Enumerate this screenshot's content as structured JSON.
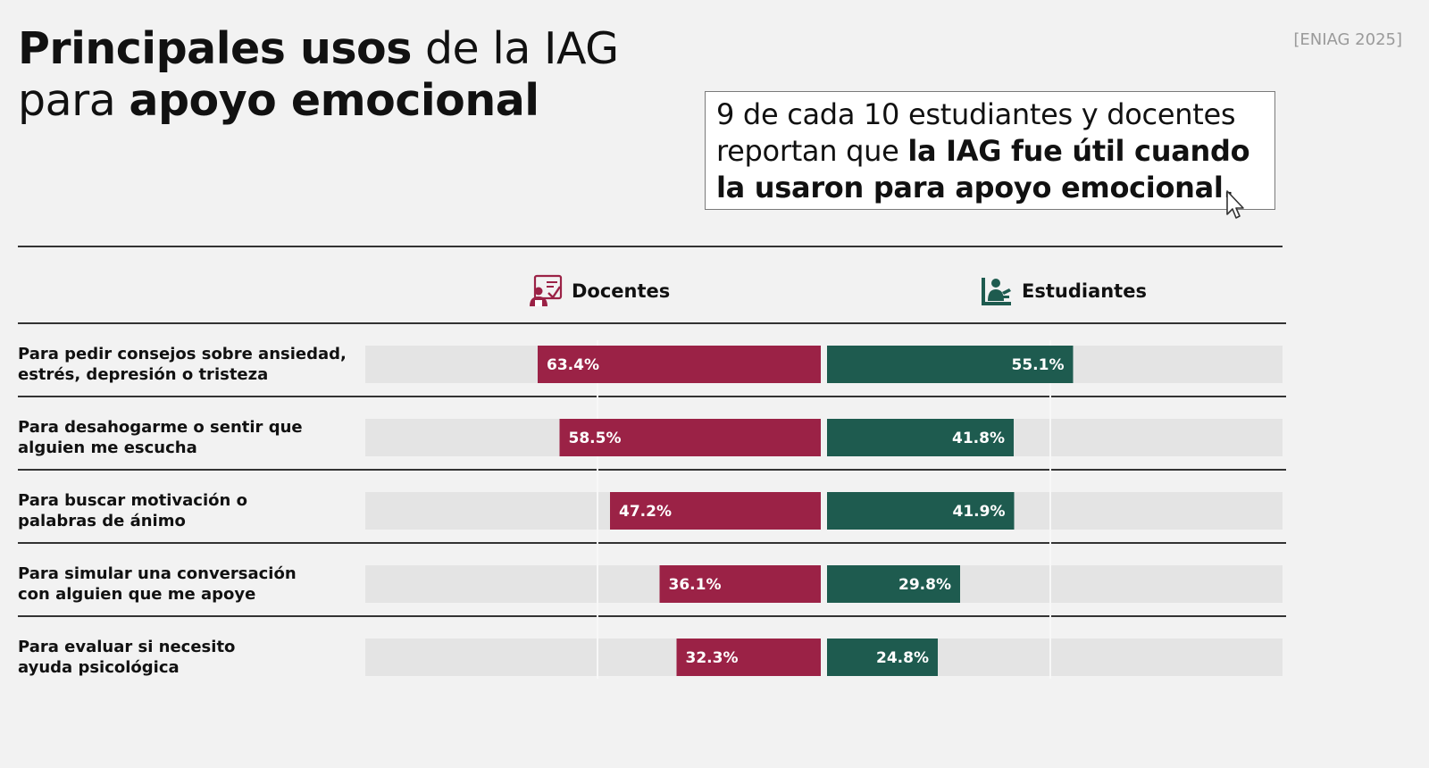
{
  "header": {
    "title_line1_bold": "Principales usos",
    "title_line1_rest": " de la IAG",
    "title_line2_rest": "para ",
    "title_line2_bold": "apoyo emocional",
    "source": "[ENIAG 2025]"
  },
  "callout": {
    "text_regular": "9 de cada 10 estudiantes y docentes reportan que ",
    "text_bold": "la IAG fue útil cuando la usaron para apoyo emocional."
  },
  "colors": {
    "docentes": "#9b2246",
    "estudiantes": "#1e5b4f",
    "track": "#e4e4e4"
  },
  "chart_data": {
    "type": "bar",
    "orientation": "horizontal-diverging",
    "categories": [
      "Para pedir consejos sobre ansiedad, estrés, depresión o tristeza",
      "Para desahogarme o sentir que alguien me escucha",
      "Para buscar motivación o palabras de ánimo",
      "Para simular una conversación con alguien que me apoye",
      "Para evaluar si necesito ayuda psicológica"
    ],
    "series": [
      {
        "name": "Docentes",
        "icon": "teacher-icon",
        "values": [
          63.4,
          58.5,
          47.2,
          36.1,
          32.3
        ],
        "labels": [
          "63.4%",
          "58.5%",
          "47.2%",
          "36.1%",
          "32.3%"
        ]
      },
      {
        "name": "Estudiantes",
        "icon": "student-icon",
        "values": [
          55.1,
          41.8,
          41.9,
          29.8,
          24.8
        ],
        "labels": [
          "55.1%",
          "41.8%",
          "41.9%",
          "29.8%",
          "24.8%"
        ]
      }
    ],
    "xlim": [
      0,
      100
    ],
    "grid": true
  }
}
